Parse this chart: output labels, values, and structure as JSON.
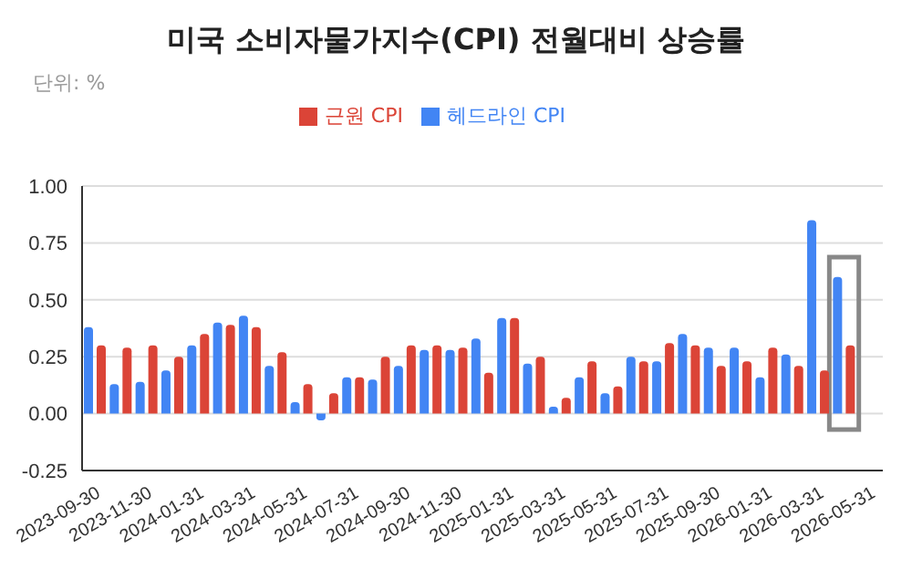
{
  "chart_data": {
    "type": "bar",
    "title": "미국 소비자물가지수(CPI) 전월대비 상승률",
    "subtitle": "단위: %",
    "categories": [
      "2023-09-30",
      null,
      "2023-11-30",
      null,
      "2024-01-31",
      null,
      "2024-03-31",
      null,
      "2024-05-31",
      null,
      "2024-07-31",
      null,
      "2024-09-30",
      null,
      "2024-11-30",
      null,
      "2025-01-31",
      null,
      "2025-03-31",
      null,
      "2025-05-31",
      null,
      "2025-07-31",
      null,
      "2025-09-30",
      null,
      "2026-01-31",
      null,
      "2026-03-31",
      null,
      "2026-05-31"
    ],
    "series": [
      {
        "name": "헤드라인 CPI",
        "color": "#4285f4",
        "values": [
          0.38,
          0.13,
          0.14,
          0.19,
          0.3,
          0.4,
          0.43,
          0.21,
          0.05,
          -0.03,
          0.16,
          0.15,
          0.21,
          0.28,
          0.28,
          0.33,
          0.42,
          0.22,
          0.03,
          0.16,
          0.09,
          0.25,
          0.23,
          0.35,
          0.29,
          0.29,
          0.16,
          0.26,
          0.85,
          0.6,
          null
        ]
      },
      {
        "name": "근원 CPI",
        "color": "#db4437",
        "values": [
          0.3,
          0.29,
          0.3,
          0.25,
          0.35,
          0.39,
          0.38,
          0.27,
          0.13,
          0.09,
          0.16,
          0.25,
          0.3,
          0.3,
          0.29,
          0.18,
          0.42,
          0.25,
          0.07,
          0.23,
          0.12,
          0.23,
          0.31,
          0.3,
          0.21,
          0.23,
          0.29,
          0.21,
          0.19,
          0.3,
          null
        ]
      }
    ],
    "ylim": [
      -0.25,
      1
    ],
    "yticks": [
      -0.25,
      {
        "value": 0,
        "label": "0.00"
      },
      0.25,
      {
        "value": 0.5,
        "label": "0.50"
      },
      0.75,
      {
        "value": 1,
        "label": "1.00"
      }
    ],
    "grid": "y",
    "legend": "top"
  }
}
